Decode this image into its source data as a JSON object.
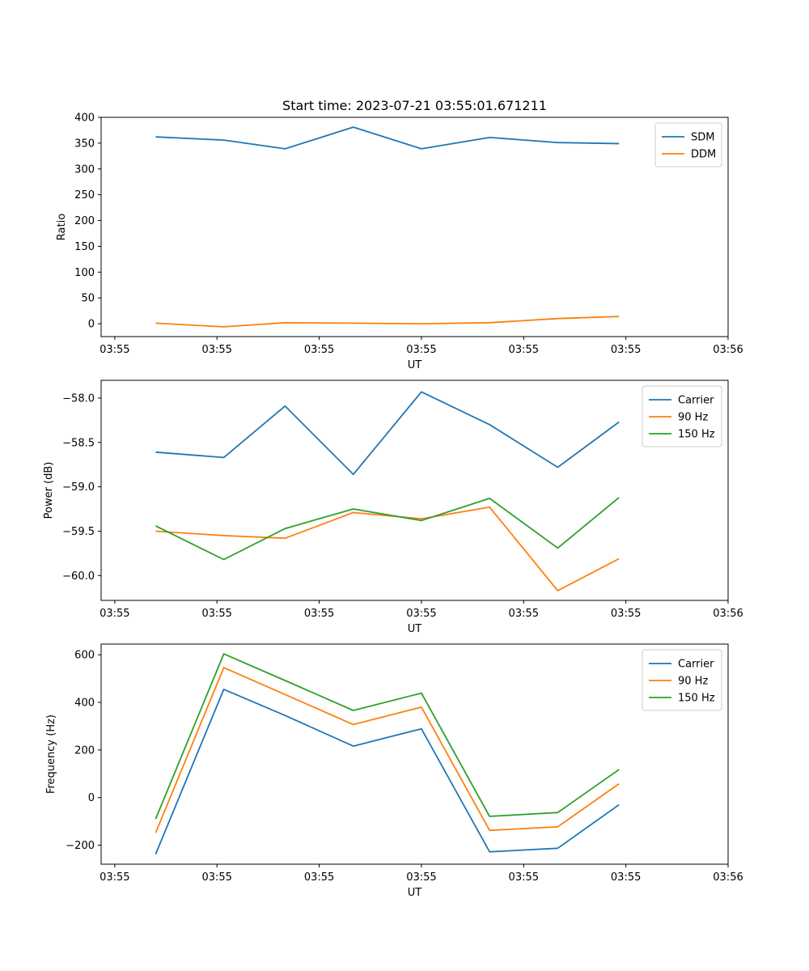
{
  "figure_title": "Start time: 2023-07-21 03:55:01.671211",
  "colors": {
    "blue": "#1f77b4",
    "orange": "#ff7f0e",
    "green": "#2ca02c"
  },
  "chart_data": [
    {
      "type": "line",
      "name": "ratio",
      "title": "Start time: 2023-07-21 03:55:01.671211",
      "xlabel": "UT",
      "ylabel": "Ratio",
      "x": [
        0.8,
        1.8,
        2.7,
        3.7,
        4.7,
        5.7,
        6.7,
        7.6
      ],
      "xlim": [
        0,
        9.2
      ],
      "xticks": [
        0.2,
        1.7,
        3.2,
        4.7,
        6.2,
        7.7,
        9.2
      ],
      "xtick_labels": [
        "03:55",
        "03:55",
        "03:55",
        "03:55",
        "03:55",
        "03:55",
        "03:56"
      ],
      "ylim": [
        -25,
        400
      ],
      "yticks": [
        0,
        50,
        100,
        150,
        200,
        250,
        300,
        350,
        400
      ],
      "ytick_labels": [
        "0",
        "50",
        "100",
        "150",
        "200",
        "250",
        "300",
        "350",
        "400"
      ],
      "legend": "top-right",
      "series": [
        {
          "name": "SDM",
          "color": "#1f77b4",
          "values": [
            362,
            356,
            339,
            381,
            339,
            361,
            351,
            349
          ]
        },
        {
          "name": "DDM",
          "color": "#ff7f0e",
          "values": [
            1,
            -6,
            2,
            1,
            0,
            2,
            10,
            14
          ]
        }
      ]
    },
    {
      "type": "line",
      "name": "power",
      "title": "",
      "xlabel": "UT",
      "ylabel": "Power (dB)",
      "x": [
        0.8,
        1.8,
        2.7,
        3.7,
        4.7,
        5.7,
        6.7,
        7.6
      ],
      "xlim": [
        0,
        9.2
      ],
      "xticks": [
        0.2,
        1.7,
        3.2,
        4.7,
        6.2,
        7.7,
        9.2
      ],
      "xtick_labels": [
        "03:55",
        "03:55",
        "03:55",
        "03:55",
        "03:55",
        "03:55",
        "03:56"
      ],
      "ylim": [
        -60.28,
        -57.8
      ],
      "yticks": [
        -58.0,
        -58.5,
        -59.0,
        -59.5,
        -60.0
      ],
      "ytick_labels": [
        "−58.0",
        "−58.5",
        "−59.0",
        "−59.5",
        "−60.0"
      ],
      "legend": "top-right",
      "series": [
        {
          "name": "Carrier",
          "color": "#1f77b4",
          "values": [
            -58.61,
            -58.67,
            -58.09,
            -58.86,
            -57.93,
            -58.3,
            -58.78,
            -58.27
          ]
        },
        {
          "name": "90 Hz",
          "color": "#ff7f0e",
          "values": [
            -59.5,
            -59.55,
            -59.58,
            -59.29,
            -59.36,
            -59.23,
            -60.17,
            -59.81
          ]
        },
        {
          "name": "150 Hz",
          "color": "#2ca02c",
          "values": [
            -59.44,
            -59.82,
            -59.47,
            -59.25,
            -59.38,
            -59.13,
            -59.69,
            -59.12
          ]
        }
      ]
    },
    {
      "type": "line",
      "name": "frequency",
      "title": "",
      "xlabel": "UT",
      "ylabel": "Frequency (Hz)",
      "x": [
        0.8,
        1.8,
        2.7,
        3.7,
        4.7,
        5.7,
        6.7,
        7.6
      ],
      "xlim": [
        0,
        9.2
      ],
      "xticks": [
        0.2,
        1.7,
        3.2,
        4.7,
        6.2,
        7.7,
        9.2
      ],
      "xtick_labels": [
        "03:55",
        "03:55",
        "03:55",
        "03:55",
        "03:55",
        "03:55",
        "03:56"
      ],
      "ylim": [
        -280,
        645
      ],
      "yticks": [
        600,
        400,
        200,
        0,
        -200
      ],
      "ytick_labels": [
        "600",
        "400",
        "200",
        "0",
        "−200"
      ],
      "legend": "top-right",
      "series": [
        {
          "name": "Carrier",
          "color": "#1f77b4",
          "values": [
            -238,
            455,
            345,
            216,
            289,
            -228,
            -213,
            -30
          ]
        },
        {
          "name": "90 Hz",
          "color": "#ff7f0e",
          "values": [
            -148,
            546,
            433,
            307,
            380,
            -138,
            -123,
            58
          ]
        },
        {
          "name": "150 Hz",
          "color": "#2ca02c",
          "values": [
            -90,
            604,
            492,
            366,
            439,
            -79,
            -63,
            118
          ]
        }
      ]
    }
  ]
}
